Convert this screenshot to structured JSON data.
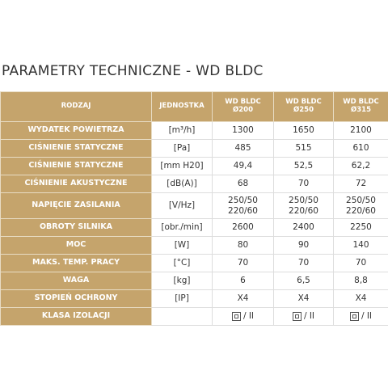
{
  "title": "PARAMETRY TECHNICZNE - WD BLDC",
  "table": {
    "header": [
      "RODZAJ",
      "JEDNOSTKA",
      "WD BLDC\nØ200",
      "WD BLDC\nØ250",
      "WD BLDC\nØ315"
    ],
    "rows": [
      [
        "WYDATEK POWIETRZA",
        "[m³/h]",
        "1300",
        "1650",
        "2100"
      ],
      [
        "CIŚNIENIE STATYCZNE",
        "[Pa]",
        "485",
        "515",
        "610"
      ],
      [
        "CIŚNIENIE STATYCZNE",
        "[mm H20]",
        "49,4",
        "52,5",
        "62,2"
      ],
      [
        "CIŚNIENIE AKUSTYCZNE",
        "[dB(A)]",
        "68",
        "70",
        "72"
      ],
      [
        "NAPIĘCIE ZASILANIA",
        "[V/Hz]",
        "250/50\n220/60",
        "250/50\n220/60",
        "250/50\n220/60"
      ],
      [
        "OBROTY SILNIKA",
        "[obr./min]",
        "2600",
        "2400",
        "2250"
      ],
      [
        "MOC",
        "[W]",
        "80",
        "90",
        "140"
      ],
      [
        "MAKS. TEMP. PRACY",
        "[°C]",
        "70",
        "70",
        "70"
      ],
      [
        "WAGA",
        "[kg]",
        "6",
        "6,5",
        "8,8"
      ],
      [
        "STOPIEŃ OCHRONY",
        "[IP]",
        "X4",
        "X4",
        "X4"
      ],
      [
        "KLASA IZOLACJI",
        "",
        "/ II",
        "/ II",
        "/ II"
      ]
    ]
  }
}
